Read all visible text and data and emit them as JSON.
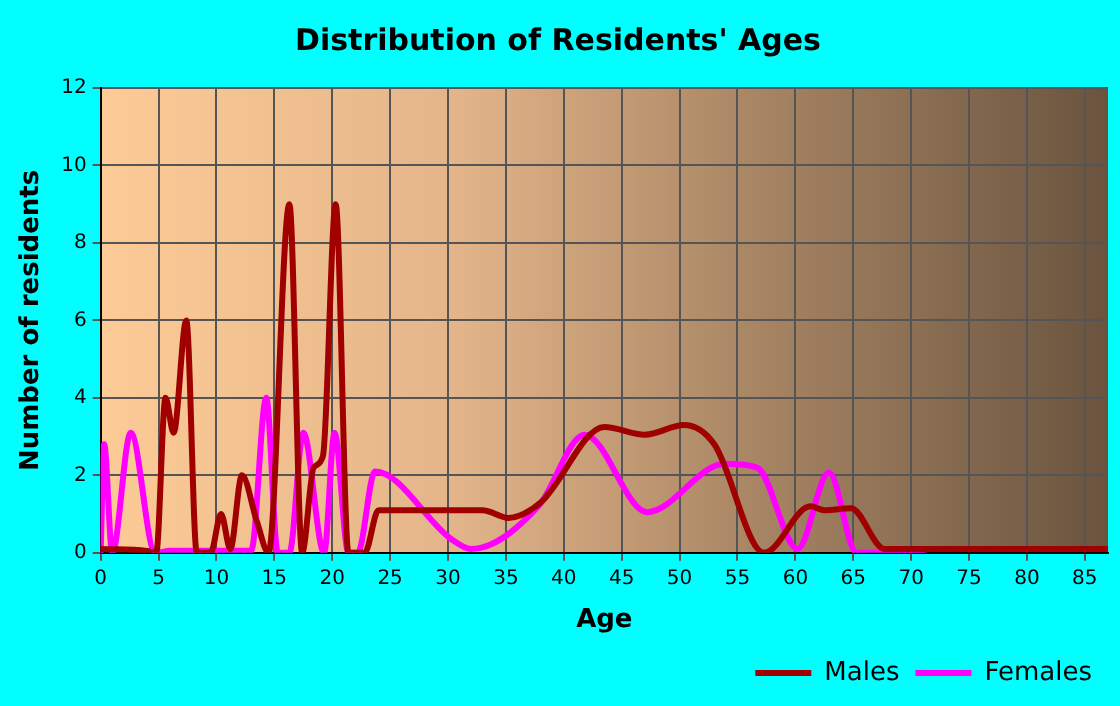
{
  "chart_data": {
    "type": "line",
    "title": "Distribution of Residents' Ages",
    "xlabel": "Age",
    "ylabel": "Number of residents",
    "xlim": [
      0,
      87
    ],
    "xticks": [
      0,
      5,
      10,
      15,
      20,
      25,
      30,
      35,
      40,
      45,
      50,
      55,
      60,
      65,
      70,
      75,
      80,
      85
    ],
    "ylim": [
      0,
      12
    ],
    "yticks": [
      0,
      2,
      4,
      6,
      8,
      10,
      12
    ],
    "grid": true,
    "legend": "bottom right",
    "marker": "none",
    "series": [
      {
        "name": "Males",
        "color": "#a00000",
        "x": [
          0,
          4,
          4.8,
          5.6,
          6.3,
          7.4,
          8.3,
          9.5,
          10.4,
          11.2,
          12.2,
          13.5,
          14.5,
          16.3,
          17.4,
          18.4,
          19.2,
          20.3,
          21.4,
          22.8,
          24,
          28.6,
          33,
          35.2,
          38,
          43.5,
          47,
          50.4,
          53,
          57.3,
          61.3,
          62.5,
          64.8,
          67.7,
          87
        ],
        "values": [
          0.1,
          0.05,
          0,
          4,
          3.1,
          6,
          0,
          0,
          1,
          0.1,
          2,
          0.8,
          0,
          9,
          0,
          2.2,
          2.5,
          9,
          0,
          0,
          1.1,
          1.1,
          1.1,
          0.9,
          1.3,
          3.25,
          3.05,
          3.3,
          2.8,
          0,
          1.2,
          1.1,
          1.15,
          0.1,
          0.1
        ]
      },
      {
        "name": "Females",
        "color": "#ff00ff",
        "x": [
          0,
          0.3,
          1,
          2.6,
          4.7,
          6,
          13,
          14.3,
          15.3,
          16.3,
          17.5,
          19.3,
          20.2,
          21.4,
          22.2,
          23.7,
          30.3,
          32,
          37.8,
          41.8,
          47.2,
          53.9,
          56.7,
          60.2,
          62.9,
          65.3,
          71
        ],
        "values": [
          0,
          2.8,
          0,
          3.1,
          0,
          0.05,
          0.05,
          4,
          0,
          0,
          3.1,
          0,
          3.1,
          0,
          0,
          2.1,
          0.35,
          0.1,
          1.2,
          3.05,
          1.05,
          2.3,
          2.2,
          0.1,
          2.07,
          0,
          0
        ]
      }
    ]
  }
}
